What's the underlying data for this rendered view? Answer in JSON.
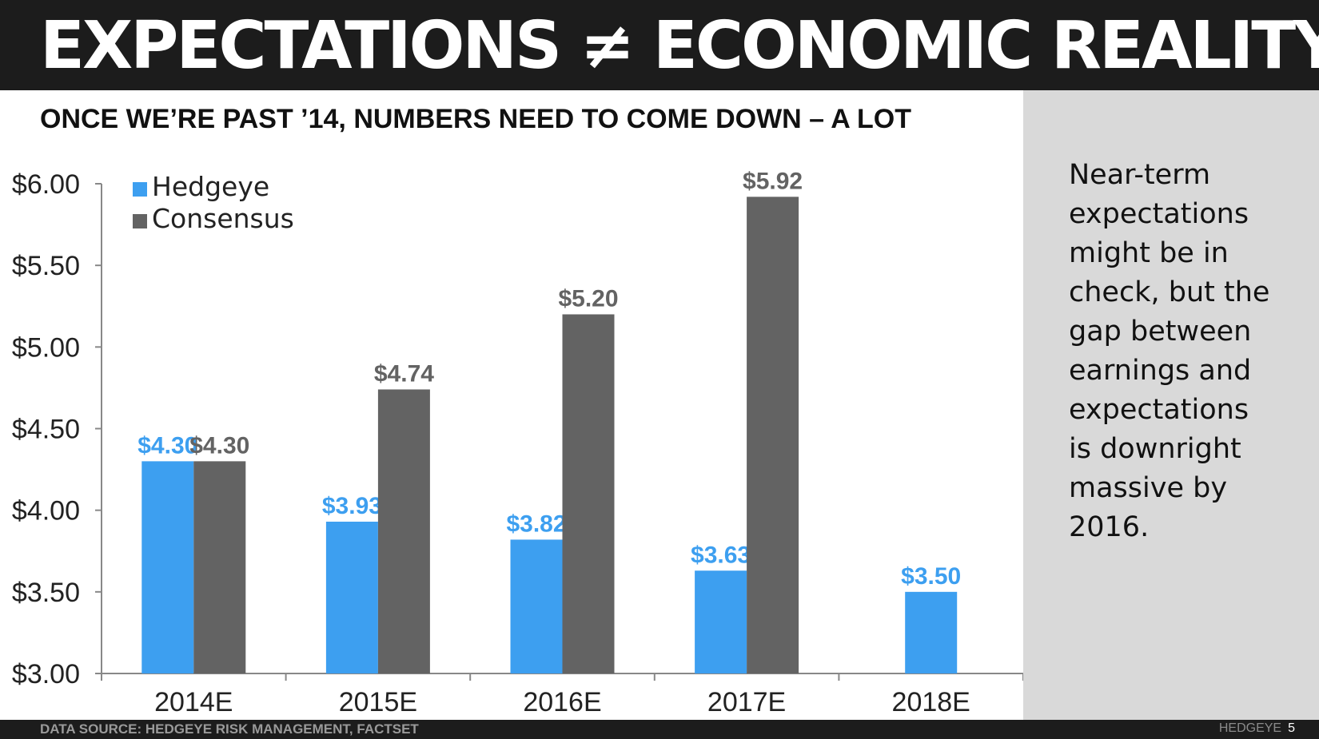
{
  "header": {
    "title": "EXPECTATIONS ≠ ECONOMIC REALITY",
    "subtitle": "ONCE WE’RE PAST ’14, NUMBERS NEED TO COME DOWN – A LOT"
  },
  "sidebar": {
    "text_lines": [
      "Near-term",
      "expectations",
      "might be in",
      "check, but the",
      "gap between",
      "earnings and",
      "expectations",
      "is downright",
      "massive by",
      "2016."
    ]
  },
  "footer": {
    "source": "DATA SOURCE: HEDGEYE RISK MANAGEMENT, FACTSET",
    "brand": "HEDGEYE",
    "page": "5"
  },
  "colors": {
    "hedgeye": "#3d9ff0",
    "consensus": "#636363",
    "header_bg": "#1c1c1c",
    "panel_bg": "#d9d9d9"
  },
  "chart_data": {
    "type": "bar",
    "categories": [
      "2014E",
      "2015E",
      "2016E",
      "2017E",
      "2018E"
    ],
    "series": [
      {
        "name": "Hedgeye",
        "values": [
          4.3,
          3.93,
          3.82,
          3.63,
          3.5
        ],
        "labels": [
          "$4.30",
          "$3.93",
          "$3.82",
          "$3.63",
          "$3.50"
        ]
      },
      {
        "name": "Consensus",
        "values": [
          4.3,
          4.74,
          5.2,
          5.92,
          null
        ],
        "labels": [
          "$4.30",
          "$4.74",
          "$5.20",
          "$5.92",
          null
        ]
      }
    ],
    "yticks": [
      "$3.00",
      "$3.50",
      "$4.00",
      "$4.50",
      "$5.00",
      "$5.50",
      "$6.00"
    ],
    "ylim": [
      3.0,
      6.0
    ],
    "legend_position": "top-left",
    "grid": false
  }
}
